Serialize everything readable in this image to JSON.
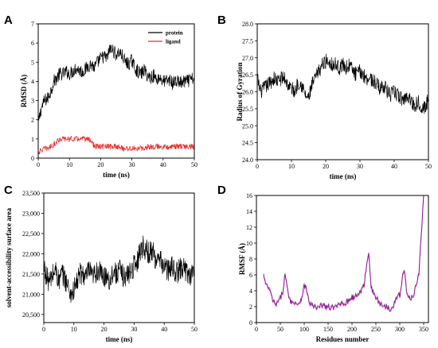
{
  "chart_data": [
    {
      "panel": "A",
      "type": "line",
      "xlabel": "time (ns)",
      "ylabel": "RMSD (Å)",
      "xlim": [
        0,
        50
      ],
      "ylim": [
        0,
        7
      ],
      "xticks": [
        0,
        10,
        20,
        30,
        40,
        50
      ],
      "yticks": [
        0,
        1,
        2,
        3,
        4,
        5,
        6,
        7
      ],
      "legend": "top-right",
      "series": [
        {
          "name": "protein",
          "color": "#000000",
          "x": [
            0,
            1,
            2,
            3,
            4,
            5,
            6,
            7,
            8,
            9,
            10,
            11,
            12,
            13,
            14,
            15,
            16,
            17,
            18,
            19,
            20,
            21,
            22,
            23,
            24,
            25,
            26,
            27,
            28,
            29,
            30,
            31,
            32,
            33,
            34,
            35,
            36,
            37,
            38,
            39,
            40,
            41,
            42,
            43,
            44,
            45,
            46,
            47,
            48,
            49,
            50
          ],
          "y": [
            1.8,
            2.6,
            3.0,
            3.1,
            3.5,
            4.0,
            4.2,
            4.4,
            4.4,
            4.5,
            4.4,
            4.5,
            4.7,
            4.6,
            4.5,
            4.6,
            4.8,
            4.9,
            4.7,
            5.0,
            5.2,
            5.3,
            5.2,
            5.7,
            5.6,
            5.4,
            5.5,
            5.3,
            5.0,
            4.9,
            5.1,
            4.7,
            4.5,
            4.4,
            4.6,
            4.3,
            4.2,
            4.3,
            4.1,
            4.2,
            4.0,
            4.0,
            4.1,
            3.9,
            4.0,
            4.0,
            3.9,
            4.0,
            4.0,
            4.1,
            4.1
          ],
          "noise": 0.35
        },
        {
          "name": "ligand",
          "color": "#e8322f",
          "x": [
            0,
            1,
            2,
            3,
            4,
            5,
            6,
            7,
            8,
            9,
            10,
            11,
            12,
            13,
            14,
            15,
            16,
            17,
            18,
            19,
            20,
            21,
            22,
            23,
            24,
            25,
            26,
            27,
            28,
            29,
            30,
            31,
            32,
            33,
            34,
            35,
            36,
            37,
            38,
            39,
            40,
            41,
            42,
            43,
            44,
            45,
            46,
            47,
            48,
            49,
            50
          ],
          "y": [
            0.3,
            0.4,
            0.5,
            0.5,
            0.6,
            0.7,
            0.9,
            1.0,
            1.0,
            1.0,
            1.0,
            1.0,
            1.0,
            1.0,
            1.0,
            1.0,
            1.0,
            0.9,
            0.6,
            0.6,
            0.6,
            0.6,
            0.6,
            0.6,
            0.6,
            0.6,
            0.6,
            0.5,
            0.5,
            0.5,
            0.5,
            0.5,
            0.5,
            0.5,
            0.5,
            0.6,
            0.6,
            0.6,
            0.6,
            0.6,
            0.6,
            0.6,
            0.6,
            0.6,
            0.6,
            0.6,
            0.6,
            0.6,
            0.6,
            0.6,
            0.6
          ],
          "noise": 0.15
        }
      ]
    },
    {
      "panel": "B",
      "type": "line",
      "xlabel": "time (ns)",
      "ylabel": "Radius of Gyration",
      "xlim": [
        0,
        50
      ],
      "ylim": [
        24.0,
        28.0
      ],
      "xticks": [
        0,
        10,
        20,
        30,
        40,
        50
      ],
      "yticks": [
        24.0,
        24.5,
        25.0,
        25.5,
        26.0,
        26.5,
        27.0,
        27.5,
        28.0
      ],
      "series": [
        {
          "name": "",
          "color": "#000000",
          "x": [
            0,
            1,
            2,
            3,
            4,
            5,
            6,
            7,
            8,
            9,
            10,
            11,
            12,
            13,
            14,
            15,
            16,
            17,
            18,
            19,
            20,
            21,
            22,
            23,
            24,
            25,
            26,
            27,
            28,
            29,
            30,
            31,
            32,
            33,
            34,
            35,
            36,
            37,
            38,
            39,
            40,
            41,
            42,
            43,
            44,
            45,
            46,
            47,
            48,
            49,
            50
          ],
          "y": [
            26.4,
            26.0,
            26.1,
            26.2,
            26.3,
            26.4,
            26.3,
            26.4,
            26.4,
            26.2,
            26.1,
            26.0,
            26.3,
            26.2,
            25.9,
            25.8,
            26.2,
            26.4,
            26.6,
            26.8,
            26.9,
            26.9,
            26.8,
            26.8,
            26.7,
            26.8,
            26.7,
            26.8,
            26.6,
            26.5,
            26.6,
            26.5,
            26.4,
            26.4,
            26.3,
            26.2,
            26.1,
            26.2,
            26.0,
            25.9,
            26.0,
            25.9,
            25.8,
            25.8,
            25.9,
            25.7,
            25.6,
            25.7,
            25.6,
            25.5,
            25.8
          ],
          "noise": 0.22
        }
      ]
    },
    {
      "panel": "C",
      "type": "line",
      "xlabel": "time (ns)",
      "ylabel": "solvent-accessibility surface area",
      "xlim": [
        0,
        50
      ],
      "ylim": [
        20300,
        23500
      ],
      "xticks": [
        0,
        10,
        20,
        30,
        40,
        50
      ],
      "yticks": [
        "20,500",
        "21,000",
        "21,500",
        "22,000",
        "22,500",
        "23,000",
        "23,500"
      ],
      "series": [
        {
          "name": "",
          "color": "#000000",
          "x": [
            0,
            1,
            2,
            3,
            4,
            5,
            6,
            7,
            8,
            9,
            10,
            11,
            12,
            13,
            14,
            15,
            16,
            17,
            18,
            19,
            20,
            21,
            22,
            23,
            24,
            25,
            26,
            27,
            28,
            29,
            30,
            31,
            32,
            33,
            34,
            35,
            36,
            37,
            38,
            39,
            40,
            41,
            42,
            43,
            44,
            45,
            46,
            47,
            48,
            49,
            50
          ],
          "y": [
            21700,
            21400,
            21300,
            21500,
            21600,
            21300,
            21500,
            21400,
            21200,
            21000,
            21100,
            21300,
            21500,
            21500,
            21400,
            21600,
            21400,
            21500,
            21600,
            21500,
            21400,
            21500,
            21300,
            21600,
            21500,
            21600,
            21500,
            21400,
            21500,
            21600,
            21700,
            21800,
            22100,
            22200,
            22100,
            22000,
            22100,
            21900,
            21800,
            21800,
            21700,
            21600,
            21600,
            21700,
            21500,
            21600,
            21700,
            21600,
            21500,
            21500,
            21600
          ],
          "noise": 280
        }
      ]
    },
    {
      "panel": "D",
      "type": "line",
      "xlabel": "Residues number",
      "ylabel": "RMSF (Å)",
      "xlim": [
        0,
        360
      ],
      "ylim": [
        0,
        16
      ],
      "xticks": [
        0,
        50,
        100,
        150,
        200,
        250,
        300,
        350
      ],
      "yticks": [
        0,
        2,
        4,
        6,
        8,
        10,
        12,
        14,
        16
      ],
      "series": [
        {
          "name": "",
          "color": "#c21fc7",
          "x": [
            15,
            20,
            25,
            30,
            35,
            40,
            45,
            50,
            55,
            60,
            65,
            70,
            75,
            80,
            85,
            90,
            95,
            100,
            105,
            110,
            115,
            120,
            125,
            130,
            135,
            140,
            145,
            150,
            155,
            160,
            165,
            170,
            175,
            180,
            185,
            190,
            195,
            200,
            205,
            210,
            215,
            220,
            225,
            230,
            235,
            240,
            245,
            250,
            255,
            260,
            265,
            270,
            275,
            280,
            285,
            290,
            295,
            300,
            305,
            310,
            315,
            320,
            325,
            330,
            335,
            340,
            345,
            350
          ],
          "y": [
            5.9,
            4.6,
            4.4,
            3.6,
            2.6,
            2.2,
            2.5,
            3.0,
            3.9,
            6.1,
            4.0,
            2.9,
            2.4,
            2.6,
            2.3,
            2.5,
            3.2,
            4.6,
            4.2,
            2.5,
            2.2,
            2.0,
            1.8,
            1.8,
            2.1,
            2.2,
            1.9,
            2.0,
            1.7,
            2.0,
            1.8,
            2.1,
            2.3,
            2.6,
            2.3,
            2.6,
            2.9,
            3.2,
            3.1,
            3.4,
            3.6,
            4.1,
            4.6,
            7.0,
            9.0,
            4.4,
            3.6,
            3.2,
            2.6,
            2.3,
            2.1,
            2.0,
            1.9,
            1.7,
            2.0,
            2.6,
            3.3,
            3.4,
            5.6,
            6.6,
            3.4,
            3.0,
            3.2,
            3.6,
            5.0,
            6.2,
            11.0,
            16.0
          ],
          "noise": 0.35
        }
      ]
    }
  ]
}
